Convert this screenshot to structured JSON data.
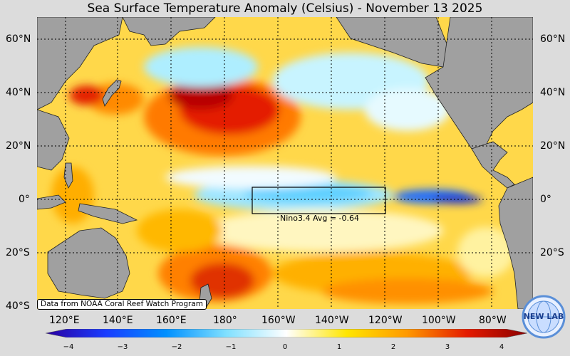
{
  "title": "Sea Surface Temperature Anomaly (Celsius) - November 13 2025",
  "lat_labels": [
    "60°N",
    "40°N",
    "20°N",
    "0°",
    "20°S",
    "40°S"
  ],
  "lon_labels": [
    "120°E",
    "140°E",
    "160°E",
    "180°",
    "160°W",
    "140°W",
    "120°W",
    "100°W",
    "80°W"
  ],
  "colorbar": {
    "ticks": [
      "−4",
      "−3",
      "−2",
      "−1",
      "0",
      "1",
      "2",
      "3",
      "4"
    ],
    "min": -4,
    "max": 4
  },
  "nino_box": {
    "label": "Nino3.4 Avg = -0.64",
    "region": "Nino3.4",
    "avg": -0.64
  },
  "credit": "Data from NOAA Coral Reef Watch Program",
  "logo": {
    "text": "NEW LAB",
    "icon": "globe-logo-icon"
  },
  "colors": {
    "land": "#a0a0a0",
    "neutral": "#ffffff",
    "warm": "#d40000",
    "cool": "#00aaff",
    "background": "#dcdcdc"
  }
}
